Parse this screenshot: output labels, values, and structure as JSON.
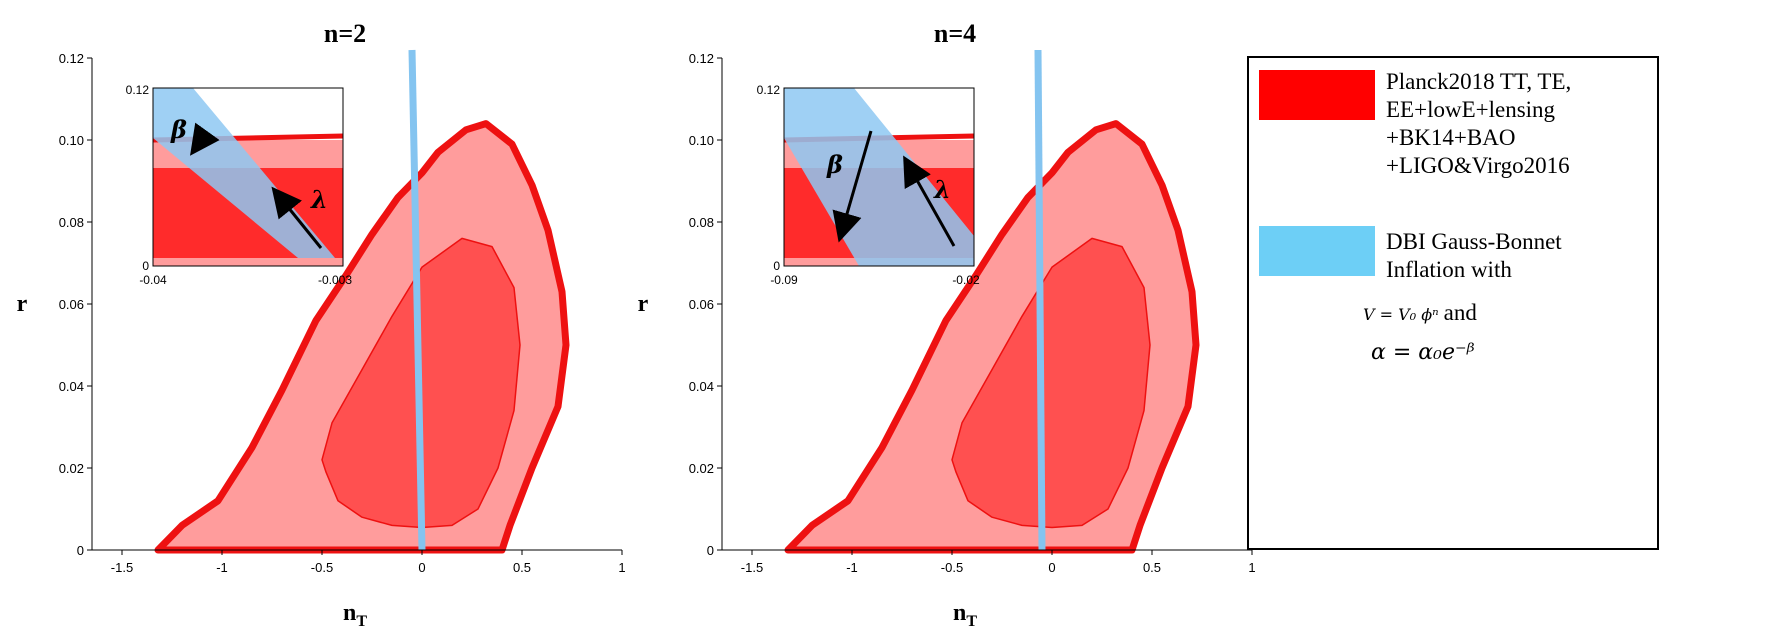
{
  "chart_data": [
    {
      "type": "area",
      "title": "n=2",
      "xlabel": "n_T",
      "ylabel": "r",
      "xlim": [
        -1.65,
        1
      ],
      "ylim": [
        0,
        0.12
      ],
      "xticks": [
        "-1.5",
        "-1",
        "-0.5",
        "0",
        "0.5",
        "1"
      ],
      "yticks": [
        "0",
        "0.02",
        "0.04",
        "0.06",
        "0.08",
        "0.10",
        "0.12"
      ],
      "regions": [
        {
          "name": "Planck2018 TT, TE, EE+lowE+lensing +BK14+BAO +LIGO&Virgo2016",
          "level": "95%",
          "x": [
            -1.32,
            -1.2,
            -1.02,
            -0.85,
            -0.7,
            -0.53,
            -0.38,
            -0.25,
            -0.12,
            0.0,
            0.08,
            0.22,
            0.32,
            0.45,
            0.55,
            0.63,
            0.7,
            0.72,
            0.68,
            0.55,
            0.44,
            0.4
          ],
          "y": [
            0.0,
            0.006,
            0.012,
            0.025,
            0.039,
            0.056,
            0.067,
            0.077,
            0.086,
            0.092,
            0.097,
            0.1025,
            0.104,
            0.099,
            0.089,
            0.078,
            0.063,
            0.05,
            0.035,
            0.02,
            0.006,
            0.0
          ]
        },
        {
          "name": "Planck2018 TT, TE, EE+lowE+lensing +BK14+BAO +LIGO&Virgo2016",
          "level": "68%",
          "x": [
            -0.48,
            -0.42,
            -0.3,
            -0.15,
            0.0,
            0.15,
            0.28,
            0.38,
            0.46,
            0.49,
            0.46,
            0.35,
            0.2,
            0.0,
            -0.15,
            -0.3,
            -0.45,
            -0.5
          ],
          "y": [
            0.019,
            0.012,
            0.008,
            0.006,
            0.0055,
            0.006,
            0.01,
            0.02,
            0.034,
            0.05,
            0.064,
            0.074,
            0.076,
            0.069,
            0.057,
            0.044,
            0.031,
            0.022
          ]
        }
      ],
      "band": {
        "name": "DBI Gauss-Bonnet Inflation with V=V0 φ^n and α=α0 e^(-λφ)",
        "x": [
          -0.05,
          0.0
        ],
        "y": [
          0.12,
          0.0
        ]
      },
      "inset": {
        "xlim": [
          -0.04,
          -0.003
        ],
        "ylim": [
          0,
          0.12
        ],
        "xticks": [
          "-0.04",
          "-0.003"
        ],
        "yticks": [
          "0",
          "0.12"
        ],
        "arrows": [
          "β",
          "λ"
        ]
      }
    },
    {
      "type": "area",
      "title": "n=4",
      "xlabel": "n_T",
      "ylabel": "r",
      "xlim": [
        -1.65,
        1
      ],
      "ylim": [
        0,
        0.12
      ],
      "xticks": [
        "-1.5",
        "-1",
        "-0.5",
        "0",
        "0.5",
        "1"
      ],
      "yticks": [
        "0",
        "0.02",
        "0.04",
        "0.06",
        "0.08",
        "0.10",
        "0.12"
      ],
      "regions": [
        {
          "name": "Planck2018 TT, TE, EE+lowE+lensing +BK14+BAO +LIGO&Virgo2016",
          "level": "95%",
          "x": [
            -1.32,
            -1.2,
            -1.02,
            -0.85,
            -0.7,
            -0.53,
            -0.38,
            -0.25,
            -0.12,
            0.0,
            0.08,
            0.22,
            0.32,
            0.45,
            0.55,
            0.63,
            0.7,
            0.72,
            0.68,
            0.55,
            0.44,
            0.4
          ],
          "y": [
            0.0,
            0.006,
            0.012,
            0.025,
            0.039,
            0.056,
            0.067,
            0.077,
            0.086,
            0.092,
            0.097,
            0.1025,
            0.104,
            0.099,
            0.089,
            0.078,
            0.063,
            0.05,
            0.035,
            0.02,
            0.006,
            0.0
          ]
        },
        {
          "name": "Planck2018 TT, TE, EE+lowE+lensing +BK14+BAO +LIGO&Virgo2016",
          "level": "68%",
          "x": [
            -0.48,
            -0.42,
            -0.3,
            -0.15,
            0.0,
            0.15,
            0.28,
            0.38,
            0.46,
            0.49,
            0.46,
            0.35,
            0.2,
            0.0,
            -0.15,
            -0.3,
            -0.45,
            -0.5
          ],
          "y": [
            0.019,
            0.012,
            0.008,
            0.006,
            0.0055,
            0.006,
            0.01,
            0.02,
            0.034,
            0.05,
            0.064,
            0.074,
            0.076,
            0.069,
            0.057,
            0.044,
            0.031,
            0.022
          ]
        }
      ],
      "band": {
        "name": "DBI Gauss-Bonnet Inflation with V=V0 φ^n and α=α0 e^(-λφ)",
        "x": [
          -0.07,
          -0.05
        ],
        "y": [
          0.12,
          0.0
        ]
      },
      "inset": {
        "xlim": [
          -0.09,
          -0.02
        ],
        "ylim": [
          0,
          0.12
        ],
        "xticks": [
          "-0.09",
          "-0.02"
        ],
        "yticks": [
          "0",
          "0.12"
        ],
        "arrows": [
          "β",
          "λ"
        ]
      }
    }
  ],
  "legend": {
    "items": [
      {
        "label": "Planck2018 TT, TE,\nEE+lowE+lensing\n+BK14+BAO\n+LIGO&Virgo2016",
        "color": "#ff0000"
      },
      {
        "label": "DBI Gauss-Bonnet\nInflation with",
        "color": "#6dcff6"
      }
    ],
    "eq1": "V = V₀ ϕⁿ",
    "eq1_and": "and",
    "eq2": "α = α₀e⁻ᵝ"
  },
  "colors": {
    "contour95_fill": "#ff9c9c",
    "contour68_fill": "#ff5050",
    "contour_line": "#ee1111",
    "band": "#84c4f0",
    "inset_band": "#8ec8f2"
  }
}
